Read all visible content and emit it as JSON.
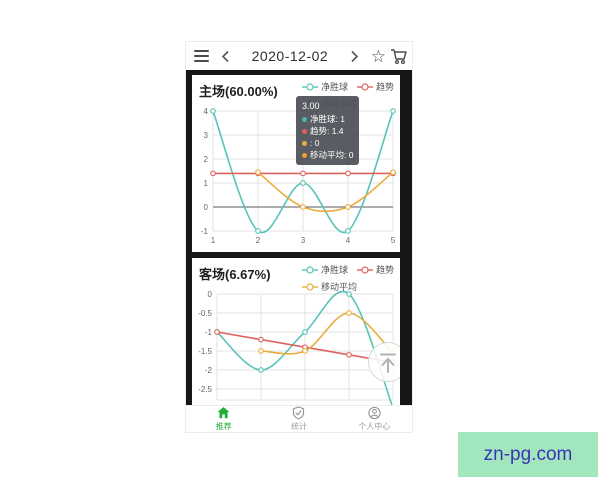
{
  "topbar": {
    "date": "2020-12-02"
  },
  "chart_data": [
    {
      "type": "line",
      "title": "主场(60.00%)",
      "x": [
        1,
        2,
        3,
        4,
        5
      ],
      "series": [
        {
          "name": "净胜球",
          "color": "#58c3b8",
          "smooth": true,
          "values": [
            4,
            -1,
            1,
            -1,
            4
          ]
        },
        {
          "name": "趋势",
          "color": "#de6360",
          "smooth": false,
          "values": [
            1.4,
            1.4,
            1.4,
            1.4,
            1.4
          ]
        },
        {
          "name": "移动平均",
          "color": "#e9ac3c",
          "smooth": true,
          "values": [
            null,
            1.45,
            0,
            0,
            1.45
          ]
        }
      ],
      "legend": [
        "净胜球",
        "趋势",
        "移动平均"
      ],
      "yticks": [
        4,
        3,
        2,
        1,
        0,
        -1
      ],
      "xticks": [
        1,
        2,
        3,
        4,
        5
      ],
      "ylim": [
        -1,
        4
      ],
      "zeroline": true,
      "grid": true,
      "legend_position": "top-right"
    },
    {
      "type": "line",
      "title": "客场(6.67%)",
      "x": [
        1,
        2,
        3,
        4,
        5
      ],
      "series": [
        {
          "name": "净胜球",
          "color": "#58c3b8",
          "smooth": true,
          "values": [
            -1,
            -2,
            -1,
            0,
            -3
          ]
        },
        {
          "name": "趋势",
          "color": "#de6360",
          "smooth": false,
          "values": [
            -1,
            -1.2,
            -1.4,
            -1.6,
            -1.8
          ]
        },
        {
          "name": "移动平均",
          "color": "#e9ac3c",
          "smooth": true,
          "values": [
            null,
            -1.5,
            -1.5,
            -0.5,
            -1.55
          ]
        }
      ],
      "legend": [
        "净胜球",
        "趋势",
        "移动平均"
      ],
      "yticks": [
        0,
        -0.5,
        -1,
        -1.5,
        -2,
        -2.5
      ],
      "xticks": [],
      "ylim": [
        -2.5,
        0
      ],
      "zeroline": false,
      "grid": true,
      "legend_position": "top-right"
    }
  ],
  "tooltip": {
    "title": "3.00",
    "items": [
      {
        "label": "净胜球",
        "value": "1",
        "color": "#3fbcb4"
      },
      {
        "label": "趋势",
        "value": "1.4",
        "color": "#e25d57"
      },
      {
        "label": "",
        "value": "0",
        "color": "#e9b23c"
      },
      {
        "label": "移动平均",
        "value": "0",
        "color": "#ee9d33"
      }
    ]
  },
  "tabbar": {
    "items": [
      {
        "label": "推荐",
        "active": true
      },
      {
        "label": "统计",
        "active": false
      },
      {
        "label": "个人中心",
        "active": false
      }
    ],
    "active_color": "#21ae36",
    "inactive_color": "#9a9a9a"
  },
  "badge": {
    "text": "zn-pg.com",
    "bg": "#a2e6be",
    "color": "#3a35b5"
  }
}
